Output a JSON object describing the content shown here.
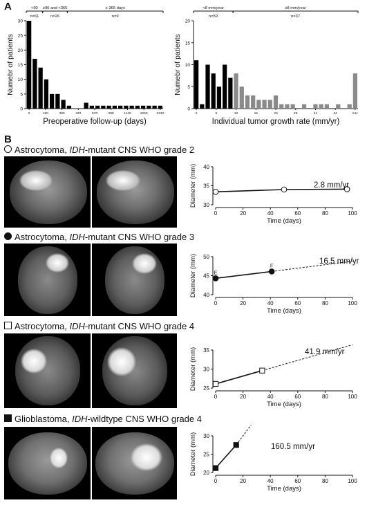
{
  "panels": {
    "a": "A",
    "b": "B"
  },
  "chart_data": [
    {
      "type": "bar",
      "ylabel": "Numebr of patients",
      "xlabel": "Preoperative follow-up (days)",
      "ylim": [
        0,
        30
      ],
      "y_ticks": [
        "0",
        "5",
        "10",
        "15",
        "20",
        "25",
        "30"
      ],
      "x_ticks": [
        "0",
        "150",
        "300",
        "420",
        "570",
        "900",
        "1140",
        "2250",
        "2310"
      ],
      "groups": [
        {
          "label": "<90",
          "n": "n=61"
        },
        {
          "label": "≥90 and <365",
          "n": "n=26"
        },
        {
          "label": "≥ 365 days",
          "n": "n=9"
        }
      ],
      "values": [
        30,
        17,
        14,
        10,
        5,
        5,
        3,
        1,
        0,
        0,
        2,
        1,
        1,
        1,
        1,
        1,
        1,
        1,
        1,
        1,
        1,
        1,
        1,
        1
      ]
    },
    {
      "type": "bar",
      "ylabel": "Numebr of patients",
      "xlabel": "Individual tumor growth rate (mm/yr)",
      "ylim": [
        0,
        20
      ],
      "y_ticks": [
        "0",
        "5",
        "10",
        "15",
        "20"
      ],
      "x_ticks": [
        "0",
        "5",
        "10",
        "15",
        "20",
        "25",
        "31",
        "34",
        "≥41"
      ],
      "groups": [
        {
          "label": "<8 mm/year",
          "n": "n=59"
        },
        {
          "label": "≥8 mm/year",
          "n": "n=37"
        }
      ],
      "values": [
        11,
        1,
        10,
        8,
        5,
        10,
        7,
        8,
        5,
        3,
        3,
        2,
        2,
        2,
        3,
        1,
        1,
        1,
        0,
        1,
        0,
        1,
        1,
        1,
        0,
        1,
        0,
        1,
        8
      ],
      "split_index": 7
    },
    {
      "type": "line",
      "title": "Astrocytoma, IDH-mutant CNS WHO grade 2",
      "marker": "open-circle",
      "xlabel": "Time (days)",
      "ylabel": "Diameter (mm)",
      "xlim": [
        0,
        100
      ],
      "ylim": [
        30,
        40
      ],
      "x_ticks": [
        "0",
        "20",
        "40",
        "60",
        "80",
        "100"
      ],
      "y_ticks": [
        "30",
        "35",
        "40"
      ],
      "x": [
        0,
        50,
        96
      ],
      "y": [
        33.4,
        34.0,
        34.1
      ],
      "rate": "2.8 mm/yr"
    },
    {
      "type": "line",
      "title": "Astrocytoma, IDH-mutant CNS WHO grade 3",
      "marker": "filled-circle",
      "xlabel": "Time (days)",
      "ylabel": "Diameter (mm)",
      "xlim": [
        0,
        100
      ],
      "ylim": [
        40,
        50
      ],
      "x_ticks": [
        "0",
        "20",
        "40",
        "60",
        "80",
        "100"
      ],
      "y_ticks": [
        "40",
        "45",
        "50"
      ],
      "x": [
        0,
        41
      ],
      "y": [
        44.3,
        46.1
      ],
      "point_labels": [
        "E",
        "F"
      ],
      "extrapolate_to": [
        100,
        48.8
      ],
      "rate": "16.5 mm/yr"
    },
    {
      "type": "line",
      "title": "Astrocytoma, IDH-mutant CNS WHO grade 4",
      "marker": "open-square",
      "xlabel": "Time (days)",
      "ylabel": "Diameter (mm)",
      "xlim": [
        0,
        100
      ],
      "ylim": [
        25,
        35
      ],
      "x_ticks": [
        "0",
        "20",
        "40",
        "60",
        "80",
        "100"
      ],
      "y_ticks": [
        "25",
        "30",
        "35"
      ],
      "x": [
        0,
        34
      ],
      "y": [
        26.1,
        29.6
      ],
      "extrapolate_to": [
        100,
        36.4
      ],
      "rate": "41.9 mm/yr"
    },
    {
      "type": "line",
      "title": "Glioblastoma, IDH-wildtype CNS WHO grade 4",
      "marker": "filled-square",
      "xlabel": "Time (days)",
      "ylabel": "Diameter (mm)",
      "xlim": [
        0,
        100
      ],
      "ylim": [
        20,
        30
      ],
      "x_ticks": [
        "0",
        "20",
        "40",
        "60",
        "80",
        "100"
      ],
      "y_ticks": [
        "20",
        "25",
        "30"
      ],
      "x": [
        0,
        15
      ],
      "y": [
        21.2,
        27.5
      ],
      "extrapolate_to": [
        26,
        33
      ],
      "rate": "160.5 mm/yr"
    }
  ],
  "rows": [
    {
      "pre": "Astrocytoma, ",
      "italic": "IDH",
      "post": "-mutant CNS WHO grade 2",
      "marker": "open-circle"
    },
    {
      "pre": "Astrocytoma, ",
      "italic": "IDH",
      "post": "-mutant CNS WHO grade 3",
      "marker": "filled-circle"
    },
    {
      "pre": "Astrocytoma, ",
      "italic": "IDH",
      "post": "-mutant CNS WHO grade 4",
      "marker": "open-square"
    },
    {
      "pre": "Glioblastoma, ",
      "italic": "IDH",
      "post": "-wildtype CNS WHO grade 4",
      "marker": "filled-square"
    }
  ]
}
